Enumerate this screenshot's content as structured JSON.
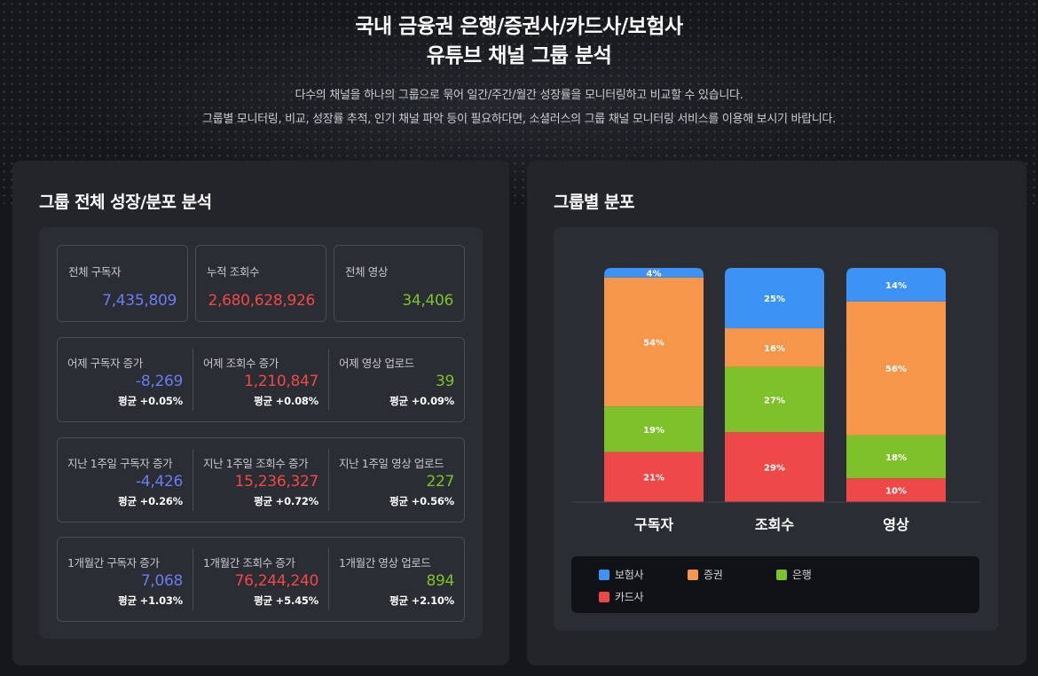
{
  "hero": {
    "title_line1": "국내 금융권 은행/증권사/카드사/보험사",
    "title_line2": "유튜브 채널 그룹 분석",
    "desc_line1": "다수의 채널을 하나의 그룹으로 묶어 일간/주간/월간 성장률을 모니터링하고 비교할 수 있습니다.",
    "desc_line2": "그룹별 모니터링, 비교, 성장률 추적, 인기 채널 파악 등이 필요하다면, 소셜러스의 그룹 채널 모니터링 서비스를 이용해 보시기 바랍니다."
  },
  "left": {
    "title": "그룹 전체 성장/분포 분석",
    "totals": [
      {
        "label": "전체 구독자",
        "value": "7,435,809"
      },
      {
        "label": "누적 조회수",
        "value": "2,680,628,926"
      },
      {
        "label": "전체 영상",
        "value": "34,406"
      }
    ],
    "growth": [
      [
        {
          "label": "어제 구독자 증가",
          "value": "-8,269",
          "avg": "평균 +0.05%"
        },
        {
          "label": "어제 조회수 증가",
          "value": "1,210,847",
          "avg": "평균 +0.08%"
        },
        {
          "label": "어제 영상 업로드",
          "value": "39",
          "avg": "평균 +0.09%"
        }
      ],
      [
        {
          "label": "지난 1주일 구독자 증가",
          "value": "-4,426",
          "avg": "평균 +0.26%"
        },
        {
          "label": "지난 1주일 조회수 증가",
          "value": "15,236,327",
          "avg": "평균 +0.72%"
        },
        {
          "label": "지난 1주일 영상 업로드",
          "value": "227",
          "avg": "평균 +0.56%"
        }
      ],
      [
        {
          "label": "1개월간 구독자 증가",
          "value": "7,068",
          "avg": "평균 +1.03%"
        },
        {
          "label": "1개월간 조회수 증가",
          "value": "76,244,240",
          "avg": "평균 +5.45%"
        },
        {
          "label": "1개월간 영상 업로드",
          "value": "894",
          "avg": "평균 +2.10%"
        }
      ]
    ]
  },
  "right": {
    "title": "그룹별 분포"
  },
  "colors": {
    "subscribers": "#6c7cf0",
    "views": "#f04848",
    "videos": "#7ec12a"
  },
  "chart_data": {
    "type": "bar",
    "stacked": true,
    "percent": true,
    "categories": [
      "구독자",
      "조회수",
      "영상"
    ],
    "series": [
      {
        "name": "보험사",
        "color": "#3d92f5",
        "values": [
          4,
          25,
          14
        ]
      },
      {
        "name": "증권",
        "color": "#f5964a",
        "values": [
          54,
          16,
          56
        ]
      },
      {
        "name": "은행",
        "color": "#7ec12a",
        "values": [
          19,
          27,
          18
        ]
      },
      {
        "name": "카드사",
        "color": "#ef4848",
        "values": [
          21,
          29,
          10
        ]
      }
    ],
    "legend_position": "bottom",
    "ylim": [
      0,
      100
    ]
  }
}
